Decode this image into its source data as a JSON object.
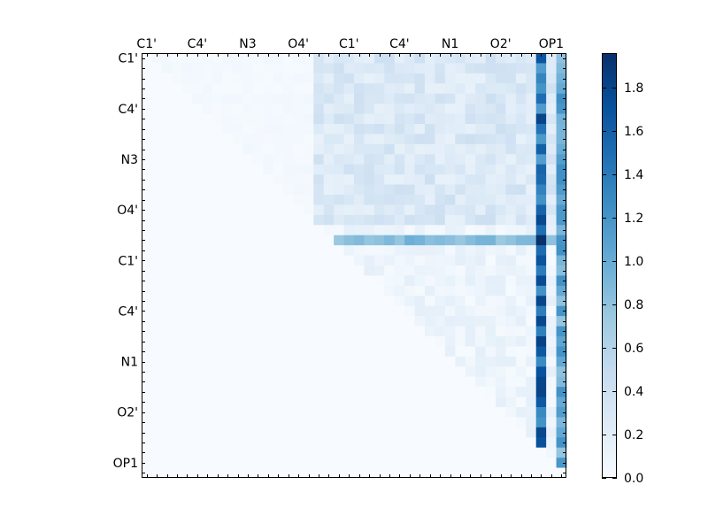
{
  "chart_data": {
    "type": "heatmap",
    "title": "",
    "xlabel": "",
    "ylabel": "",
    "grid_size": 42,
    "x_tick_labels": [
      "C1'",
      "C4'",
      "N3",
      "O4'",
      "C1'",
      "C4'",
      "N1",
      "O2'",
      "OP1"
    ],
    "y_tick_labels": [
      "C1'",
      "C4'",
      "N3",
      "O4'",
      "C1'",
      "C4'",
      "N1",
      "O2'",
      "OP1"
    ],
    "x_axis_position": "top",
    "colormap": "Blues",
    "colormap_stops": [
      "#f7fbff",
      "#deebf7",
      "#c6dbef",
      "#9ecae1",
      "#6baed6",
      "#4292c6",
      "#2171b5",
      "#08519c",
      "#08306b"
    ],
    "colorbar": {
      "min": 0.0,
      "max": 1.96,
      "ticks": [
        0.0,
        0.2,
        0.4,
        0.6,
        0.8,
        1.0,
        1.2,
        1.4,
        1.6,
        1.8
      ],
      "tick_labels": [
        "0.0",
        "0.2",
        "0.4",
        "0.6",
        "0.8",
        "1.0",
        "1.2",
        "1.4",
        "1.6",
        "1.8"
      ]
    },
    "matrix_description": "Upper-triangular matrix; values estimated from color",
    "region_values": {
      "intra_block_a": 0.04,
      "cross_block": 0.3,
      "intra_block_b": 0.08,
      "strong_row_index": 18,
      "strong_row_value": 0.85,
      "strong_col_indices": [
        39,
        41
      ],
      "strong_col_values": [
        1.6,
        1.1
      ],
      "peak": {
        "row": 18,
        "col": 39,
        "value": 1.96
      }
    }
  }
}
